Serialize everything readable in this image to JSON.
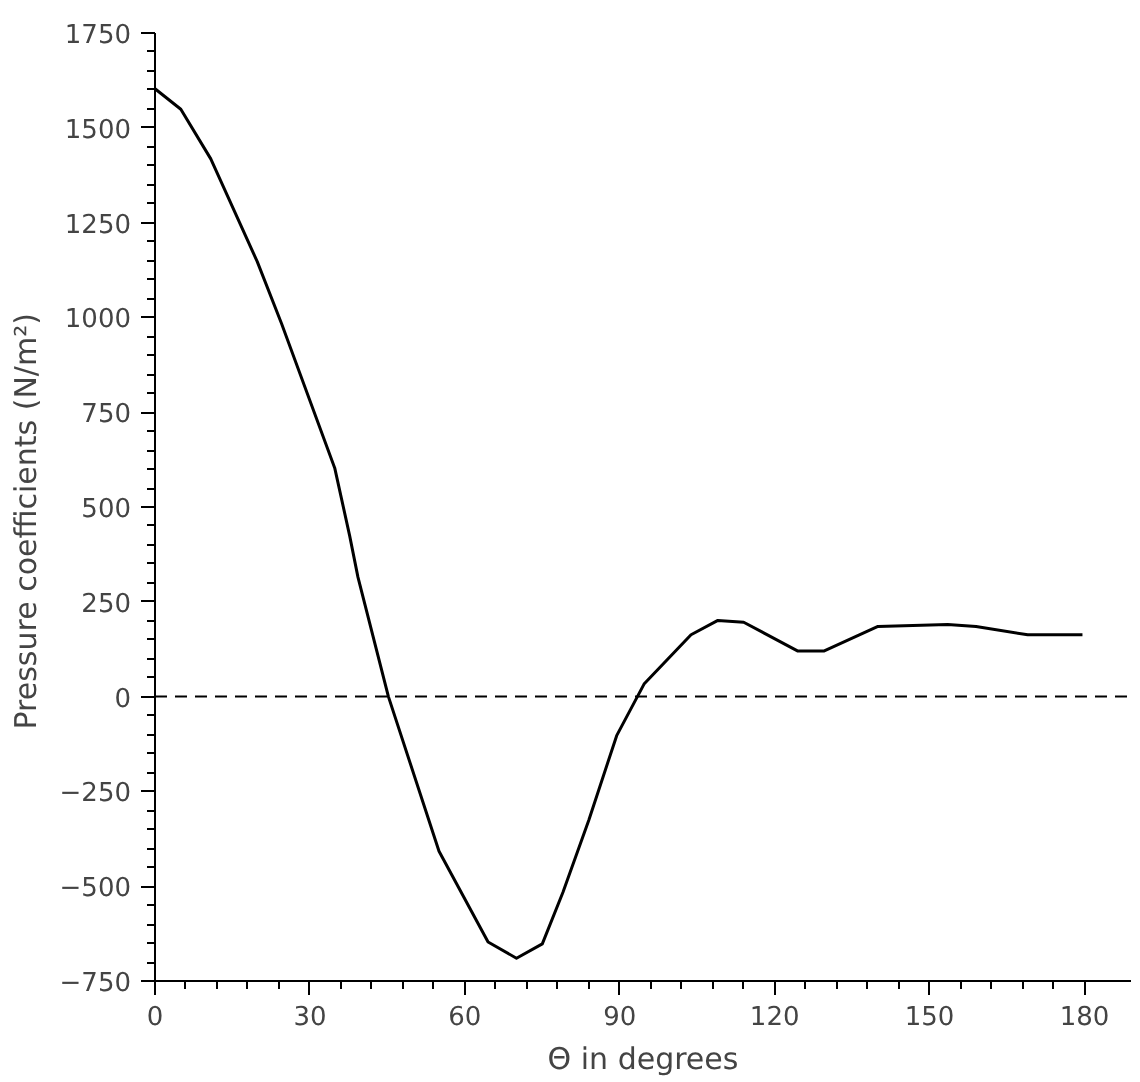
{
  "chart_data": {
    "type": "line",
    "xlabel": "Θ in degrees",
    "ylabel": "Pressure coefficients    (N/m²)",
    "x": [
      0,
      5,
      10.8,
      19.8,
      24.5,
      34.8,
      37.7,
      39.3,
      45.2,
      55,
      64.5,
      70,
      75,
      79,
      84,
      89.4,
      94.7,
      103.8,
      109,
      114,
      124.5,
      129.5,
      140,
      153.5,
      159,
      169,
      179.6
    ],
    "series": [
      {
        "color": "#000000",
        "values": [
          1603,
          1549,
          1418,
          1147,
          984,
          603,
          424,
          315,
          0,
          -408,
          -647,
          -690,
          -652,
          -516,
          -326,
          -103,
          33,
          163,
          201,
          196,
          120,
          120,
          185,
          190,
          185,
          163,
          163
        ]
      }
    ],
    "xlim": [
      0,
      189
    ],
    "xticks": [
      0,
      30,
      60,
      90,
      120,
      150,
      180
    ],
    "ylim": [
      -750,
      1750
    ],
    "yticks": [
      -750,
      -500,
      -250,
      0,
      250,
      500,
      750,
      1000,
      1250,
      1500,
      1750
    ],
    "ref_lines": [
      {
        "axis": "y",
        "value": 0,
        "color": "#000000",
        "line_style": "dashed"
      }
    ],
    "grid": false,
    "marker": "none",
    "line_style": "solid"
  }
}
